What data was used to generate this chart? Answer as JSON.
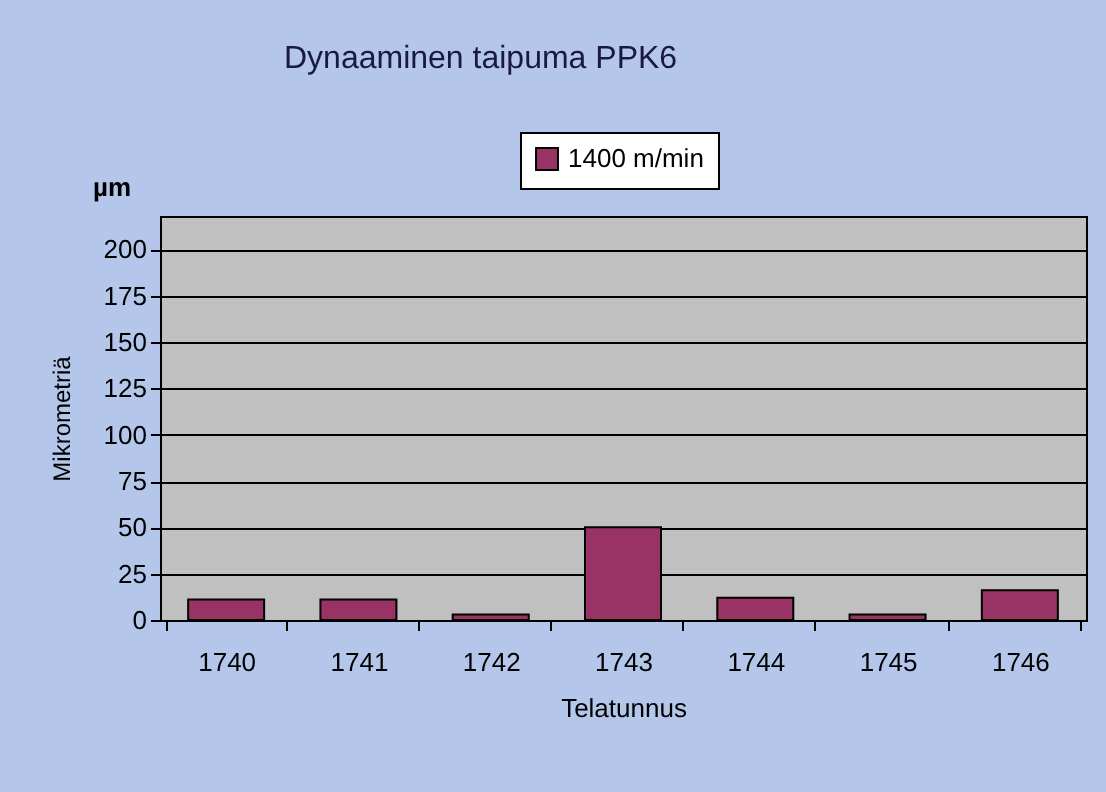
{
  "chart_data": {
    "type": "bar",
    "title": "Dynaaminen taipuma PPK6",
    "xlabel": "Telatunnus",
    "ylabel": "Mikrometriä",
    "annotations": [
      "µm"
    ],
    "categories": [
      "1740",
      "1741",
      "1742",
      "1743",
      "1744",
      "1745",
      "1746"
    ],
    "series": [
      {
        "name": "1400 m/min",
        "color": "#993366",
        "values": [
          11,
          11,
          3,
          50,
          12,
          3,
          16
        ]
      }
    ],
    "ylim": [
      0,
      218
    ],
    "yticks": [
      0,
      25,
      50,
      75,
      100,
      125,
      150,
      175,
      200
    ],
    "grid": "y",
    "legend": "top"
  }
}
